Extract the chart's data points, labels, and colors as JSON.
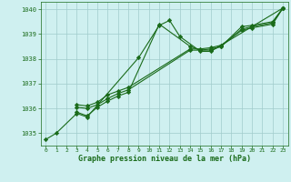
{
  "bg_color": "#cff0f0",
  "grid_color": "#a0cccc",
  "line_color": "#1a6b1a",
  "marker_color": "#1a6b1a",
  "xlabel": "Graphe pression niveau de la mer (hPa)",
  "xlim": [
    -0.5,
    23.5
  ],
  "ylim": [
    1034.5,
    1040.3
  ],
  "yticks": [
    1035,
    1036,
    1037,
    1038,
    1039,
    1040
  ],
  "xticks": [
    0,
    1,
    2,
    3,
    4,
    5,
    6,
    7,
    8,
    9,
    10,
    11,
    12,
    13,
    14,
    15,
    16,
    17,
    18,
    19,
    20,
    21,
    22,
    23
  ],
  "line1_x": [
    0,
    1,
    3,
    4,
    9,
    11,
    12,
    13,
    15,
    16,
    23
  ],
  "line1_y": [
    1034.75,
    1035.0,
    1035.8,
    1035.65,
    1038.05,
    1039.35,
    1039.55,
    1038.9,
    1038.3,
    1038.3,
    1040.05
  ],
  "line2_x": [
    3,
    4,
    5,
    6,
    7,
    8,
    11,
    14,
    15,
    16,
    17,
    19,
    20,
    22,
    23
  ],
  "line2_y": [
    1035.85,
    1035.7,
    1036.05,
    1036.3,
    1036.5,
    1036.65,
    1039.4,
    1038.5,
    1038.35,
    1038.35,
    1038.5,
    1039.3,
    1039.35,
    1039.5,
    1040.05
  ],
  "line3_x": [
    3,
    4,
    5,
    6,
    7,
    8,
    14,
    15,
    16,
    17,
    19,
    20,
    22,
    23
  ],
  "line3_y": [
    1036.05,
    1036.0,
    1036.15,
    1036.4,
    1036.6,
    1036.75,
    1038.35,
    1038.35,
    1038.4,
    1038.5,
    1039.2,
    1039.3,
    1039.45,
    1040.05
  ],
  "line4_x": [
    3,
    4,
    5,
    6,
    7,
    8,
    14,
    15,
    16,
    17,
    19,
    20,
    22,
    23
  ],
  "line4_y": [
    1036.15,
    1036.1,
    1036.25,
    1036.55,
    1036.7,
    1036.85,
    1038.4,
    1038.4,
    1038.45,
    1038.55,
    1039.15,
    1039.25,
    1039.4,
    1040.05
  ]
}
